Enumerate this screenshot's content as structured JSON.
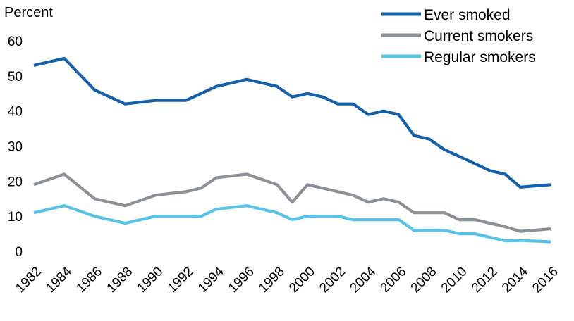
{
  "chart_data": {
    "type": "line",
    "title": "",
    "xlabel": "",
    "ylabel": "Percent",
    "ylim": [
      0,
      60
    ],
    "yticks": [
      0,
      10,
      20,
      30,
      40,
      50,
      60
    ],
    "xlim": [
      1982,
      2016
    ],
    "xticks": [
      "1982",
      "1984",
      "1986",
      "1988",
      "1990",
      "1992",
      "1994",
      "1996",
      "1998",
      "2000",
      "2002",
      "2004",
      "2006",
      "2008",
      "2010",
      "2012",
      "2014",
      "2016"
    ],
    "grid": false,
    "legend": "top-right",
    "series": [
      {
        "name": "Ever smoked",
        "color": "#1560a8",
        "points": [
          [
            1982,
            53
          ],
          [
            1984,
            55
          ],
          [
            1986,
            46
          ],
          [
            1988,
            42
          ],
          [
            1990,
            43
          ],
          [
            1992,
            43
          ],
          [
            1994,
            47
          ],
          [
            1996,
            49
          ],
          [
            1998,
            47
          ],
          [
            1999,
            44
          ],
          [
            2000,
            45
          ],
          [
            2001,
            44
          ],
          [
            2002,
            42
          ],
          [
            2003,
            42
          ],
          [
            2004,
            39
          ],
          [
            2005,
            40
          ],
          [
            2006,
            39
          ],
          [
            2007,
            33
          ],
          [
            2008,
            32
          ],
          [
            2009,
            29
          ],
          [
            2010,
            27
          ],
          [
            2011,
            25
          ],
          [
            2012,
            23
          ],
          [
            2013,
            22
          ],
          [
            2014,
            18.3
          ],
          [
            2016,
            19
          ]
        ]
      },
      {
        "name": "Current smokers",
        "color": "#8c9196",
        "points": [
          [
            1982,
            19
          ],
          [
            1984,
            22
          ],
          [
            1986,
            15
          ],
          [
            1988,
            13
          ],
          [
            1990,
            16
          ],
          [
            1992,
            17
          ],
          [
            1993,
            18
          ],
          [
            1994,
            21
          ],
          [
            1996,
            22
          ],
          [
            1998,
            19
          ],
          [
            1999,
            14
          ],
          [
            2000,
            19
          ],
          [
            2002,
            17
          ],
          [
            2003,
            16
          ],
          [
            2004,
            14
          ],
          [
            2005,
            15
          ],
          [
            2006,
            14
          ],
          [
            2007,
            11
          ],
          [
            2009,
            11
          ],
          [
            2010,
            9
          ],
          [
            2011,
            9
          ],
          [
            2012,
            8
          ],
          [
            2013,
            7
          ],
          [
            2014,
            5.7
          ],
          [
            2016,
            6.4
          ]
        ]
      },
      {
        "name": "Regular smokers",
        "color": "#5bc2e7",
        "points": [
          [
            1982,
            11
          ],
          [
            1984,
            13
          ],
          [
            1986,
            10
          ],
          [
            1988,
            8
          ],
          [
            1990,
            10
          ],
          [
            1992,
            10
          ],
          [
            1993,
            10
          ],
          [
            1994,
            12
          ],
          [
            1996,
            13
          ],
          [
            1998,
            11
          ],
          [
            1999,
            9
          ],
          [
            2000,
            10
          ],
          [
            2002,
            10
          ],
          [
            2003,
            9
          ],
          [
            2004,
            9
          ],
          [
            2005,
            9
          ],
          [
            2006,
            9
          ],
          [
            2007,
            6
          ],
          [
            2009,
            6
          ],
          [
            2010,
            5
          ],
          [
            2011,
            5
          ],
          [
            2012,
            4
          ],
          [
            2013,
            3
          ],
          [
            2014,
            3.1
          ],
          [
            2016,
            2.7
          ]
        ]
      }
    ]
  }
}
